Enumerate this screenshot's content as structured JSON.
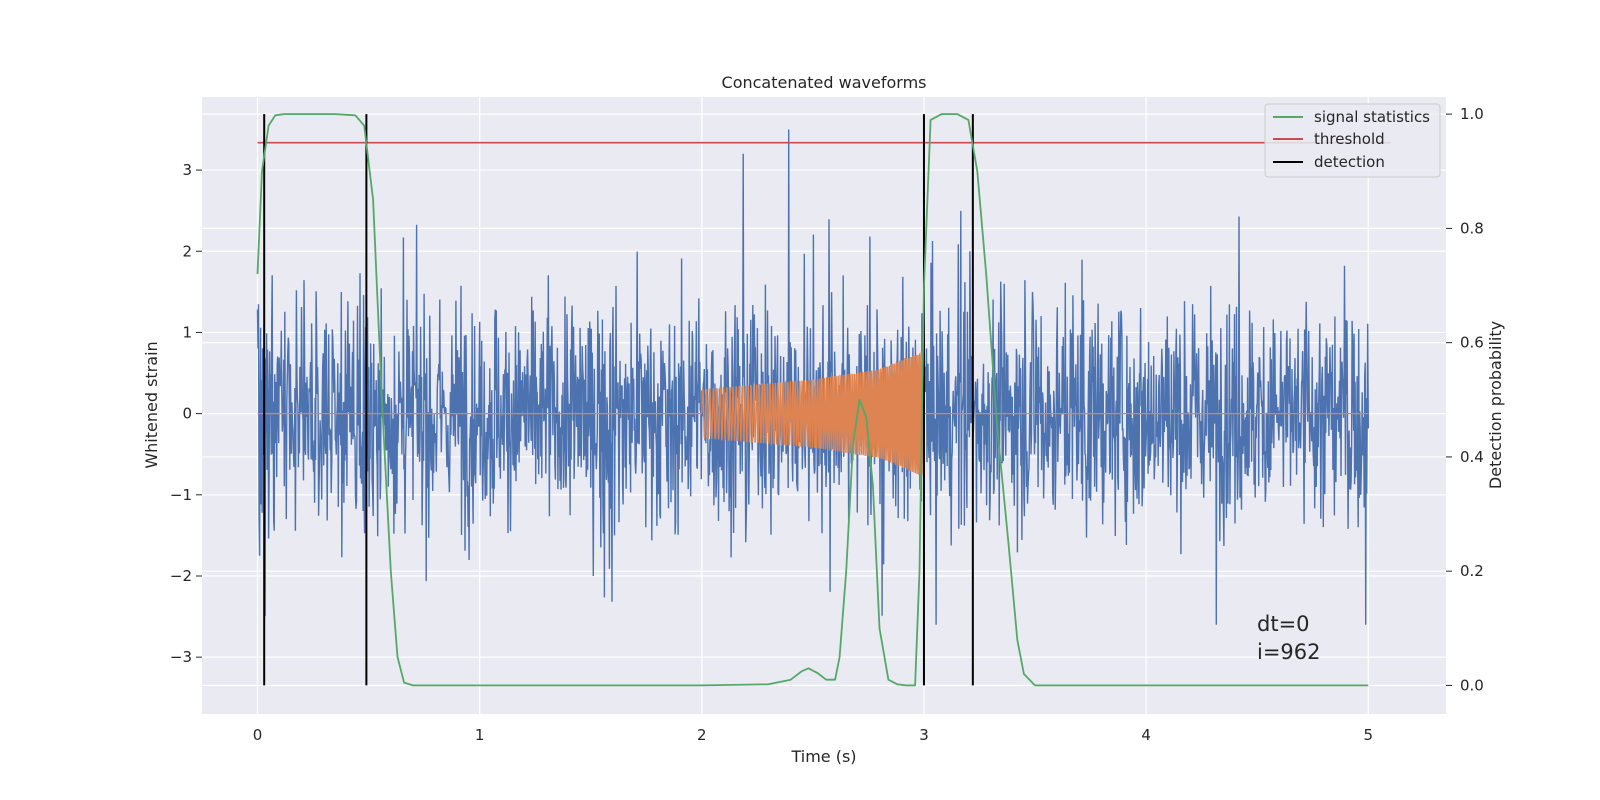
{
  "chart_data": {
    "type": "line",
    "title": "Concatenated waveforms",
    "xlabel": "Time (s)",
    "ylabel_left": "Whitened strain",
    "ylabel_right": "Detection probability",
    "xlim": [
      -0.25,
      5.35
    ],
    "ylim_left": [
      -3.7,
      3.9
    ],
    "ylim_right": [
      -0.05,
      1.03
    ],
    "x_ticks": [
      0,
      1,
      2,
      3,
      4,
      5
    ],
    "x_tick_labels": [
      "0",
      "1",
      "2",
      "3",
      "4",
      "5"
    ],
    "y_left_ticks": [
      -3,
      -2,
      -1,
      0,
      1,
      2,
      3
    ],
    "y_left_tick_labels": [
      "−3",
      "−2",
      "−1",
      "0",
      "1",
      "2",
      "3"
    ],
    "y_right_ticks": [
      0.0,
      0.2,
      0.4,
      0.6,
      0.8,
      1.0
    ],
    "y_right_tick_labels": [
      "0.0",
      "0.2",
      "0.4",
      "0.6",
      "0.8",
      "1.0"
    ],
    "grid": true,
    "legend_position": "top-right",
    "legend": [
      "signal statistics",
      "threshold",
      "detection"
    ],
    "colors": {
      "noise": "#4c72b0",
      "chirp": "#dd8452",
      "signal_statistics": "#55a868",
      "threshold": "#c44e52",
      "detection": "#000000",
      "background": "#eaeaf2",
      "grid": "#ffffff"
    },
    "noise": {
      "x_start": 0,
      "x_end": 5,
      "envelope": [
        -2.6,
        3.5
      ],
      "typical": [
        -1.2,
        1.2
      ]
    },
    "chirp": {
      "x_start": 2.0,
      "x_end": 3.0,
      "amplitude": [
        [
          2.0,
          0.3
        ],
        [
          2.5,
          0.42
        ],
        [
          2.8,
          0.55
        ],
        [
          3.0,
          0.78
        ]
      ]
    },
    "signal_statistics": {
      "x": [
        0,
        0.02,
        0.05,
        0.08,
        0.12,
        0.2,
        0.35,
        0.44,
        0.48,
        0.52,
        0.56,
        0.6,
        0.63,
        0.66,
        0.7,
        0.8,
        1.0,
        2.0,
        2.3,
        2.4,
        2.45,
        2.48,
        2.52,
        2.56,
        2.6,
        2.62,
        2.65,
        2.68,
        2.71,
        2.74,
        2.77,
        2.8,
        2.84,
        2.88,
        2.92,
        2.96,
        2.98,
        3.0,
        3.03,
        3.08,
        3.15,
        3.2,
        3.24,
        3.28,
        3.33,
        3.38,
        3.42,
        3.45,
        3.5,
        5.0
      ],
      "y": [
        0.72,
        0.9,
        0.98,
        0.998,
        1.0,
        1.0,
        1.0,
        0.998,
        0.98,
        0.85,
        0.5,
        0.2,
        0.05,
        0.005,
        0.0,
        0.0,
        0.0,
        0.0,
        0.002,
        0.01,
        0.025,
        0.03,
        0.022,
        0.01,
        0.01,
        0.05,
        0.2,
        0.42,
        0.5,
        0.47,
        0.35,
        0.1,
        0.01,
        0.002,
        0.0,
        0.0,
        0.2,
        0.7,
        0.99,
        1.0,
        1.0,
        0.99,
        0.9,
        0.72,
        0.45,
        0.25,
        0.08,
        0.02,
        0.0,
        0.0
      ]
    },
    "threshold": {
      "x": [
        0,
        5.1
      ],
      "y": 0.95
    },
    "detections": [
      0.03,
      0.49,
      3.0,
      3.22
    ],
    "annotations": {
      "dt": "dt=0",
      "i": "i=962"
    }
  }
}
